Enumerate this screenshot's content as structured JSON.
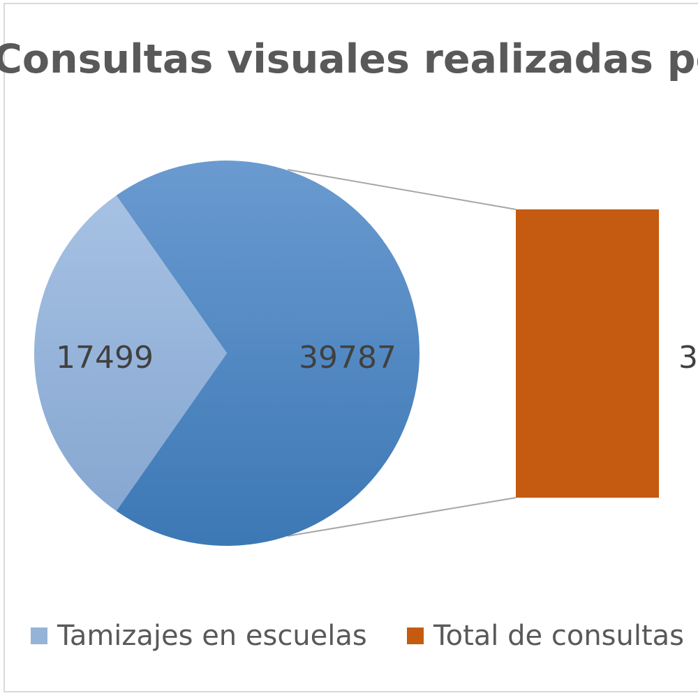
{
  "chart_data": {
    "type": "pie",
    "subtype": "pie-of-bar",
    "title": "Consultas visuales realizadas por FO",
    "slices": [
      {
        "name": "Tamizajes en escuelas",
        "value": 17499,
        "label": "17499",
        "color": "#95b3d7"
      },
      {
        "name": "Total de consultas",
        "value": 39787,
        "label": "39787",
        "color": "#4a84bd"
      }
    ],
    "bar": {
      "name": "Total de consultas",
      "label": "3",
      "color": "#c55a11"
    },
    "legend": {
      "position": "bottom",
      "entries": [
        {
          "label": "Tamizajes en escuelas",
          "color": "#95b3d7"
        },
        {
          "label": "Total de consultas",
          "color": "#c55a11"
        }
      ]
    }
  }
}
